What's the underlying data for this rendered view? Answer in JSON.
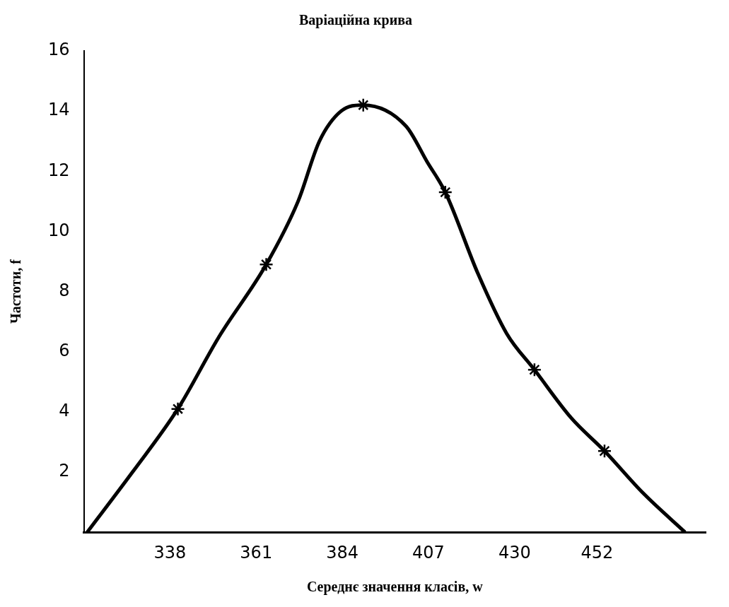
{
  "chart_data": {
    "type": "line",
    "title": "Варіаційна крива",
    "xlabel": "Середнє значення класів, w",
    "ylabel": "Частоти, f",
    "xlim": [
      315,
      481
    ],
    "xticks": [
      338,
      361,
      384,
      407,
      430,
      452
    ],
    "ylim": [
      0,
      16
    ],
    "yticks": [
      2,
      4,
      6,
      8,
      10,
      12,
      14,
      16
    ],
    "grid": false,
    "legend": false,
    "series": [
      {
        "type": "line",
        "color": "#000000",
        "marker": "none",
        "line_style": "solid",
        "x": [
          315.9,
          328.0,
          340.1,
          351.1,
          363.7,
          372.2,
          377.9,
          383.7,
          389.6,
          401.0,
          406.7,
          411.5,
          420.2,
          427.9,
          435.3,
          445.1,
          454.0,
          464.3,
          475.5
        ],
        "values": [
          0,
          2.0,
          4.1,
          6.5,
          8.9,
          11.0,
          13.0,
          14.0,
          14.2,
          13.5,
          12.3,
          11.3,
          8.6,
          6.6,
          5.4,
          3.8,
          2.7,
          1.3,
          0
        ]
      },
      {
        "type": "scatter",
        "color": "#000000",
        "marker": "cross",
        "x": [
          340.1,
          363.7,
          389.6,
          411.5,
          435.3,
          454.0
        ],
        "values": [
          4.1,
          8.9,
          14.2,
          11.3,
          5.4,
          2.7
        ]
      }
    ]
  }
}
